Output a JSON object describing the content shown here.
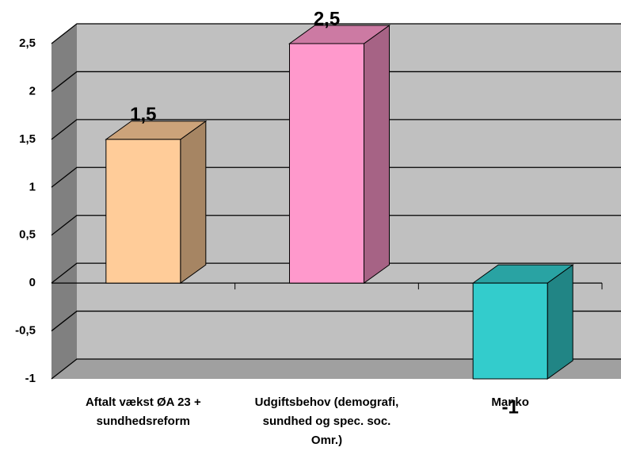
{
  "chart_data": {
    "type": "bar3d",
    "categories": [
      "Aftalt vækst ØA 23 + sundhedsreform",
      "Udgiftsbehov (demografi, sundhed og spec. soc. Omr.)",
      "Manko"
    ],
    "values": [
      1.5,
      2.5,
      -1
    ],
    "value_labels": [
      "1,5",
      "2,5",
      "-1"
    ],
    "colors": [
      "#ffcc99",
      "#ff99cc",
      "#33cccc"
    ],
    "ylim": [
      -1,
      2.5
    ],
    "yticks": [
      {
        "value": -1,
        "label": "-1"
      },
      {
        "value": -0.5,
        "label": "-0,5"
      },
      0,
      {
        "value": 0.5,
        "label": "0,5"
      },
      1,
      {
        "value": 1.5,
        "label": "1,5"
      },
      2,
      {
        "value": 2.5,
        "label": "2,5"
      }
    ],
    "grid": true
  }
}
